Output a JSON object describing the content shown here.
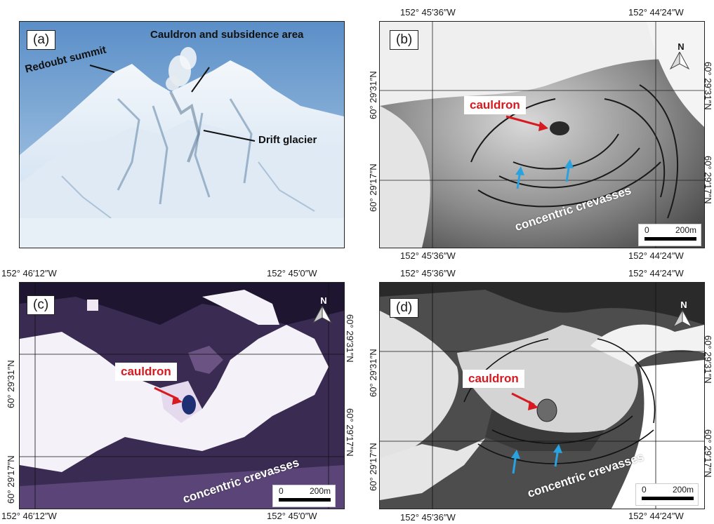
{
  "panels": {
    "a": {
      "label": "(a)",
      "annotations": {
        "summit": "Redoubt summit",
        "cauldron": "Cauldron and subsidence area",
        "glacier": "Drift glacier"
      }
    },
    "b": {
      "label": "(b)",
      "lon_left": "152° 45′36″W",
      "lon_right": "152° 44′24″W",
      "lat_top": "60° 29′31″N",
      "lat_bottom": "60° 29′17″N",
      "cauldron_label": "cauldron",
      "crevasse_label": "concentric crevasses",
      "scale": {
        "start": "0",
        "end": "200m"
      },
      "north": "N"
    },
    "c": {
      "label": "(c)",
      "lon_left": "152° 46′12″W",
      "lon_right": "152° 45′0″W",
      "lat_top": "60° 29′31″N",
      "lat_bottom": "60° 29′17″N",
      "cauldron_label": "cauldron",
      "crevasse_label": "concentric crevasses",
      "scale": {
        "start": "0",
        "end": "200m"
      },
      "north": "N"
    },
    "d": {
      "label": "(d)",
      "lon_left": "152° 45′36″W",
      "lon_right": "152° 44′24″W",
      "lat_top": "60° 29′31″N",
      "lat_bottom": "60° 29′17″N",
      "cauldron_label": "cauldron",
      "crevasse_label": "concentric crevasses",
      "scale": {
        "start": "0",
        "end": "200m"
      },
      "north": "N"
    }
  },
  "colors": {
    "cauldron_red": "#d71920",
    "arrow_blue": "#29a3e0"
  }
}
